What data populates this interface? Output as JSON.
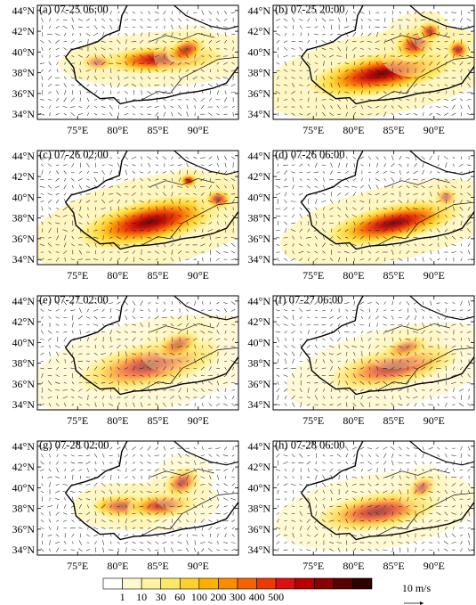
{
  "chart_data": {
    "type": "heatmap",
    "panels": [
      {
        "label": "(a) 07-25 06:00",
        "blobs": [
          {
            "lon": 85.5,
            "lat": 39.3,
            "rx": 8.0,
            "ry": 1.4,
            "rot": -3,
            "peak": 0.78
          },
          {
            "lon": 88.5,
            "lat": 40.2,
            "rx": 2.6,
            "ry": 1.2,
            "rot": -20,
            "peak": 0.55
          },
          {
            "lon": 77.5,
            "lat": 39.0,
            "rx": 2.2,
            "ry": 0.9,
            "rot": 0,
            "peak": 0.28
          }
        ]
      },
      {
        "label": "(b) 07-25 20:00",
        "blobs": [
          {
            "lon": 83.5,
            "lat": 37.9,
            "rx": 9.5,
            "ry": 2.1,
            "rot": -10,
            "peak": 0.88
          },
          {
            "lon": 87.8,
            "lat": 40.8,
            "rx": 3.0,
            "ry": 1.6,
            "rot": -25,
            "peak": 0.65
          },
          {
            "lon": 89.5,
            "lat": 42.0,
            "rx": 1.6,
            "ry": 1.0,
            "rot": 0,
            "peak": 0.55
          },
          {
            "lon": 93.0,
            "lat": 40.2,
            "rx": 1.5,
            "ry": 1.1,
            "rot": 0,
            "peak": 0.62
          }
        ]
      },
      {
        "label": "(c) 07-26 02:00",
        "blobs": [
          {
            "lon": 84.0,
            "lat": 37.6,
            "rx": 9.5,
            "ry": 2.3,
            "rot": -12,
            "peak": 0.92
          },
          {
            "lon": 88.8,
            "lat": 41.6,
            "rx": 1.2,
            "ry": 0.7,
            "rot": 0,
            "peak": 0.7
          },
          {
            "lon": 92.5,
            "lat": 39.8,
            "rx": 1.8,
            "ry": 1.0,
            "rot": 0,
            "peak": 0.55
          }
        ]
      },
      {
        "label": "(d) 07-26 06:00",
        "blobs": [
          {
            "lon": 85.0,
            "lat": 37.5,
            "rx": 9.0,
            "ry": 1.9,
            "rot": -12,
            "peak": 0.82
          },
          {
            "lon": 91.5,
            "lat": 40.0,
            "rx": 1.5,
            "ry": 1.0,
            "rot": 0,
            "peak": 0.3
          }
        ]
      },
      {
        "label": "(e) 07-27 02:00",
        "blobs": [
          {
            "lon": 84.0,
            "lat": 37.8,
            "rx": 9.5,
            "ry": 2.3,
            "rot": -12,
            "peak": 0.5
          },
          {
            "lon": 87.5,
            "lat": 39.8,
            "rx": 3.0,
            "ry": 1.3,
            "rot": -20,
            "peak": 0.3
          }
        ]
      },
      {
        "label": "(f) 07-27 06:00",
        "blobs": [
          {
            "lon": 85.0,
            "lat": 37.6,
            "rx": 8.5,
            "ry": 2.0,
            "rot": -12,
            "peak": 0.5
          },
          {
            "lon": 86.5,
            "lat": 39.5,
            "rx": 3.0,
            "ry": 1.0,
            "rot": -15,
            "peak": 0.3
          }
        ]
      },
      {
        "label": "(g) 07-28 02:00",
        "blobs": [
          {
            "lon": 80.5,
            "lat": 38.2,
            "rx": 3.8,
            "ry": 1.2,
            "rot": 0,
            "peak": 0.82
          },
          {
            "lon": 85.5,
            "lat": 38.3,
            "rx": 4.5,
            "ry": 1.3,
            "rot": -5,
            "peak": 0.55
          },
          {
            "lon": 88.0,
            "lat": 40.5,
            "rx": 2.5,
            "ry": 1.4,
            "rot": -30,
            "peak": 0.45
          }
        ]
      },
      {
        "label": "(h) 07-28 06:00",
        "blobs": [
          {
            "lon": 83.0,
            "lat": 37.7,
            "rx": 8.0,
            "ry": 1.9,
            "rot": -8,
            "peak": 0.55
          },
          {
            "lon": 88.5,
            "lat": 40.0,
            "rx": 2.0,
            "ry": 1.1,
            "rot": -30,
            "peak": 0.35
          }
        ]
      }
    ],
    "lon_range": [
      70,
      95
    ],
    "lat_range": [
      33.5,
      44.5
    ],
    "x_ticks": [
      "75°E",
      "80°E",
      "85°E",
      "90°E"
    ],
    "x_tick_values": [
      75,
      80,
      85,
      90
    ],
    "y_ticks": [
      "34°N",
      "36°N",
      "38°N",
      "40°N",
      "42°N",
      "44°N"
    ],
    "y_tick_values": [
      34,
      36,
      38,
      40,
      42,
      44
    ],
    "colorbar": {
      "labels": [
        "1",
        "10",
        "30",
        "60",
        "100",
        "200",
        "300",
        "400",
        "500"
      ],
      "colors": [
        "#ffffff",
        "#fff9d0",
        "#fff2a0",
        "#ffe866",
        "#ffd02a",
        "#ffb000",
        "#fb8c00",
        "#f66200",
        "#ee3800",
        "#dc1010",
        "#b80000",
        "#8a0000",
        "#5a0000",
        "#2e0000"
      ],
      "unit_label": "10 m/s"
    },
    "grid": false,
    "legend_position": "bottom"
  }
}
